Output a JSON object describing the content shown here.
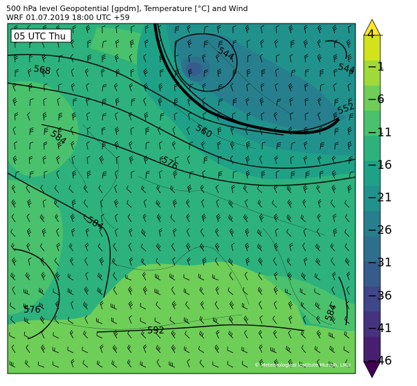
{
  "title_line1": "500 hPa level Geopotential [gpdm], Temperature [°C] and Wind",
  "title_line2": "WRF 01.07.2019 18:00 UTC +59",
  "time_badge": "05 UTC Thu",
  "copyright": "© Meteorological Institute Munich, LMU",
  "colorbar": {
    "ticks": [
      "4",
      "−1",
      "−6",
      "−11",
      "−16",
      "−21",
      "−26",
      "−31",
      "−36",
      "−41",
      "−46"
    ],
    "colors": [
      "#fde725",
      "#d2e21b",
      "#a0da39",
      "#6ece58",
      "#4ac16d",
      "#2db27d",
      "#1fa187",
      "#21918c",
      "#277f8e",
      "#2e6f8e",
      "#365c8d",
      "#3f4788",
      "#46337e",
      "#481f70",
      "#440154"
    ]
  },
  "contour_labels": [
    "568",
    "584",
    "584",
    "576",
    "592",
    "560",
    "544",
    "544",
    "552",
    "576",
    "584"
  ]
}
